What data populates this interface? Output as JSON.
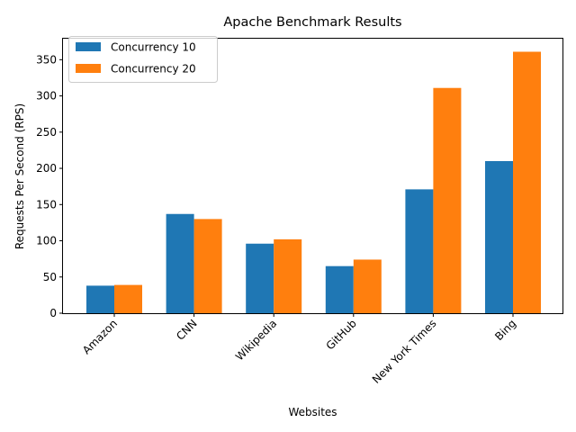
{
  "chart_data": {
    "type": "bar",
    "title": "Apache Benchmark Results",
    "xlabel": "Websites",
    "ylabel": "Requests Per Second (RPS)",
    "categories": [
      "Amazon",
      "CNN",
      "Wikipedia",
      "GitHub",
      "New York Times",
      "Bing"
    ],
    "series": [
      {
        "name": "Concurrency 10",
        "color": "#1f77b4",
        "values": [
          38,
          137,
          96,
          65,
          171,
          210
        ]
      },
      {
        "name": "Concurrency 20",
        "color": "#ff7f0e",
        "values": [
          39,
          130,
          102,
          74,
          311,
          361
        ]
      }
    ],
    "yticks": [
      0,
      50,
      100,
      150,
      200,
      250,
      300,
      350
    ],
    "ylim": [
      0,
      379
    ],
    "grid": false,
    "legend_position": "top-left",
    "xtick_rotation": 45
  }
}
